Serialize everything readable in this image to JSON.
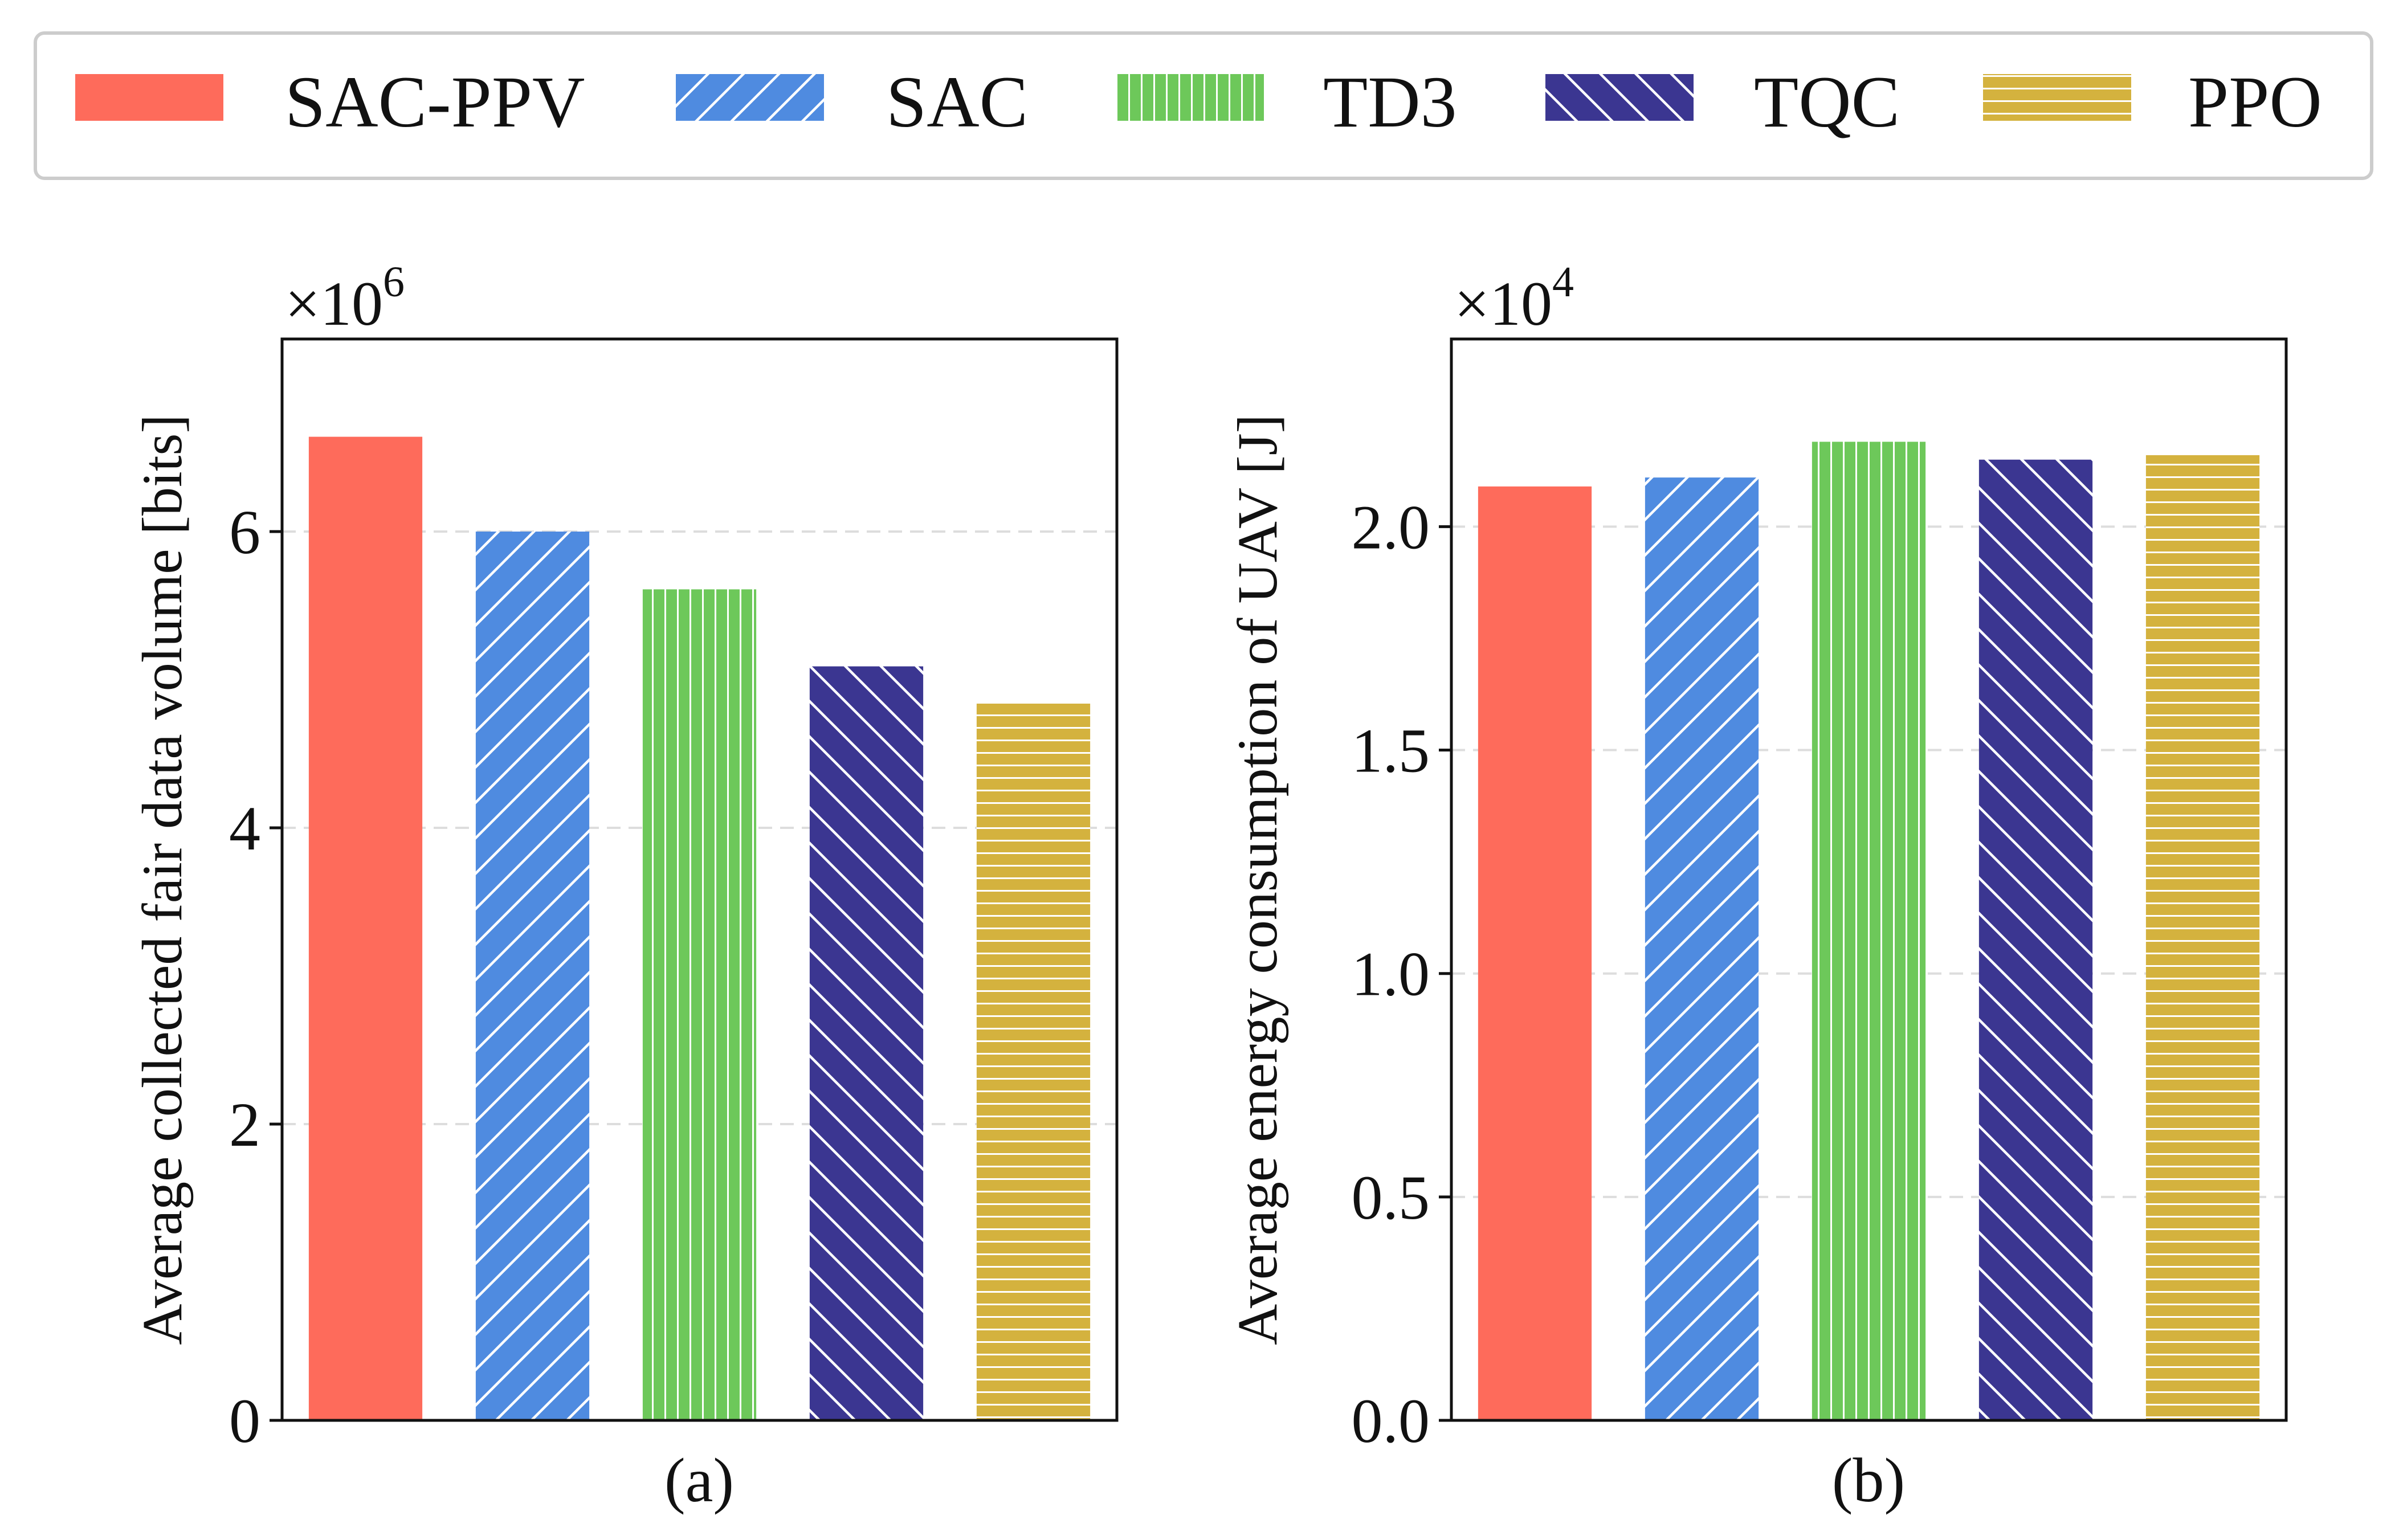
{
  "chart_data": [
    {
      "type": "bar",
      "caption": "(a)",
      "ylabel": "Average collected fair data volume [bits]",
      "multiplier_base": "×10",
      "multiplier_exp": "6",
      "categories": [
        "SAC-PPV",
        "SAC",
        "TD3",
        "TQC",
        "PPO"
      ],
      "values": [
        6.64,
        6.0,
        5.61,
        5.09,
        4.85
      ],
      "ylim": [
        0,
        7.3
      ],
      "yticks": [
        0,
        2,
        4,
        6
      ],
      "ytick_labels": [
        "0",
        "2",
        "4",
        "6"
      ],
      "grid": true
    },
    {
      "type": "bar",
      "caption": "(b)",
      "ylabel": "Average energy consumption of UAV [J]",
      "multiplier_base": "×10",
      "multiplier_exp": "4",
      "categories": [
        "SAC-PPV",
        "SAC",
        "TD3",
        "TQC",
        "PPO"
      ],
      "values": [
        2.09,
        2.11,
        2.19,
        2.15,
        2.16
      ],
      "ylim": [
        0,
        2.42
      ],
      "yticks": [
        0,
        0.5,
        1.0,
        1.5,
        2.0
      ],
      "ytick_labels": [
        "0.0",
        "0.5",
        "1.0",
        "1.5",
        "2.0"
      ],
      "grid": true
    }
  ],
  "legend": {
    "position": "top",
    "items": [
      {
        "label": "SAC-PPV",
        "color": "#fe6b5b",
        "pattern": "solid"
      },
      {
        "label": "SAC",
        "color": "#4f8be0",
        "pattern": "diag-fwd"
      },
      {
        "label": "TD3",
        "color": "#6dc85a",
        "pattern": "vertical"
      },
      {
        "label": "TQC",
        "color": "#3b3691",
        "pattern": "diag-back"
      },
      {
        "label": "PPO",
        "color": "#d4b23e",
        "pattern": "horizontal"
      }
    ]
  }
}
